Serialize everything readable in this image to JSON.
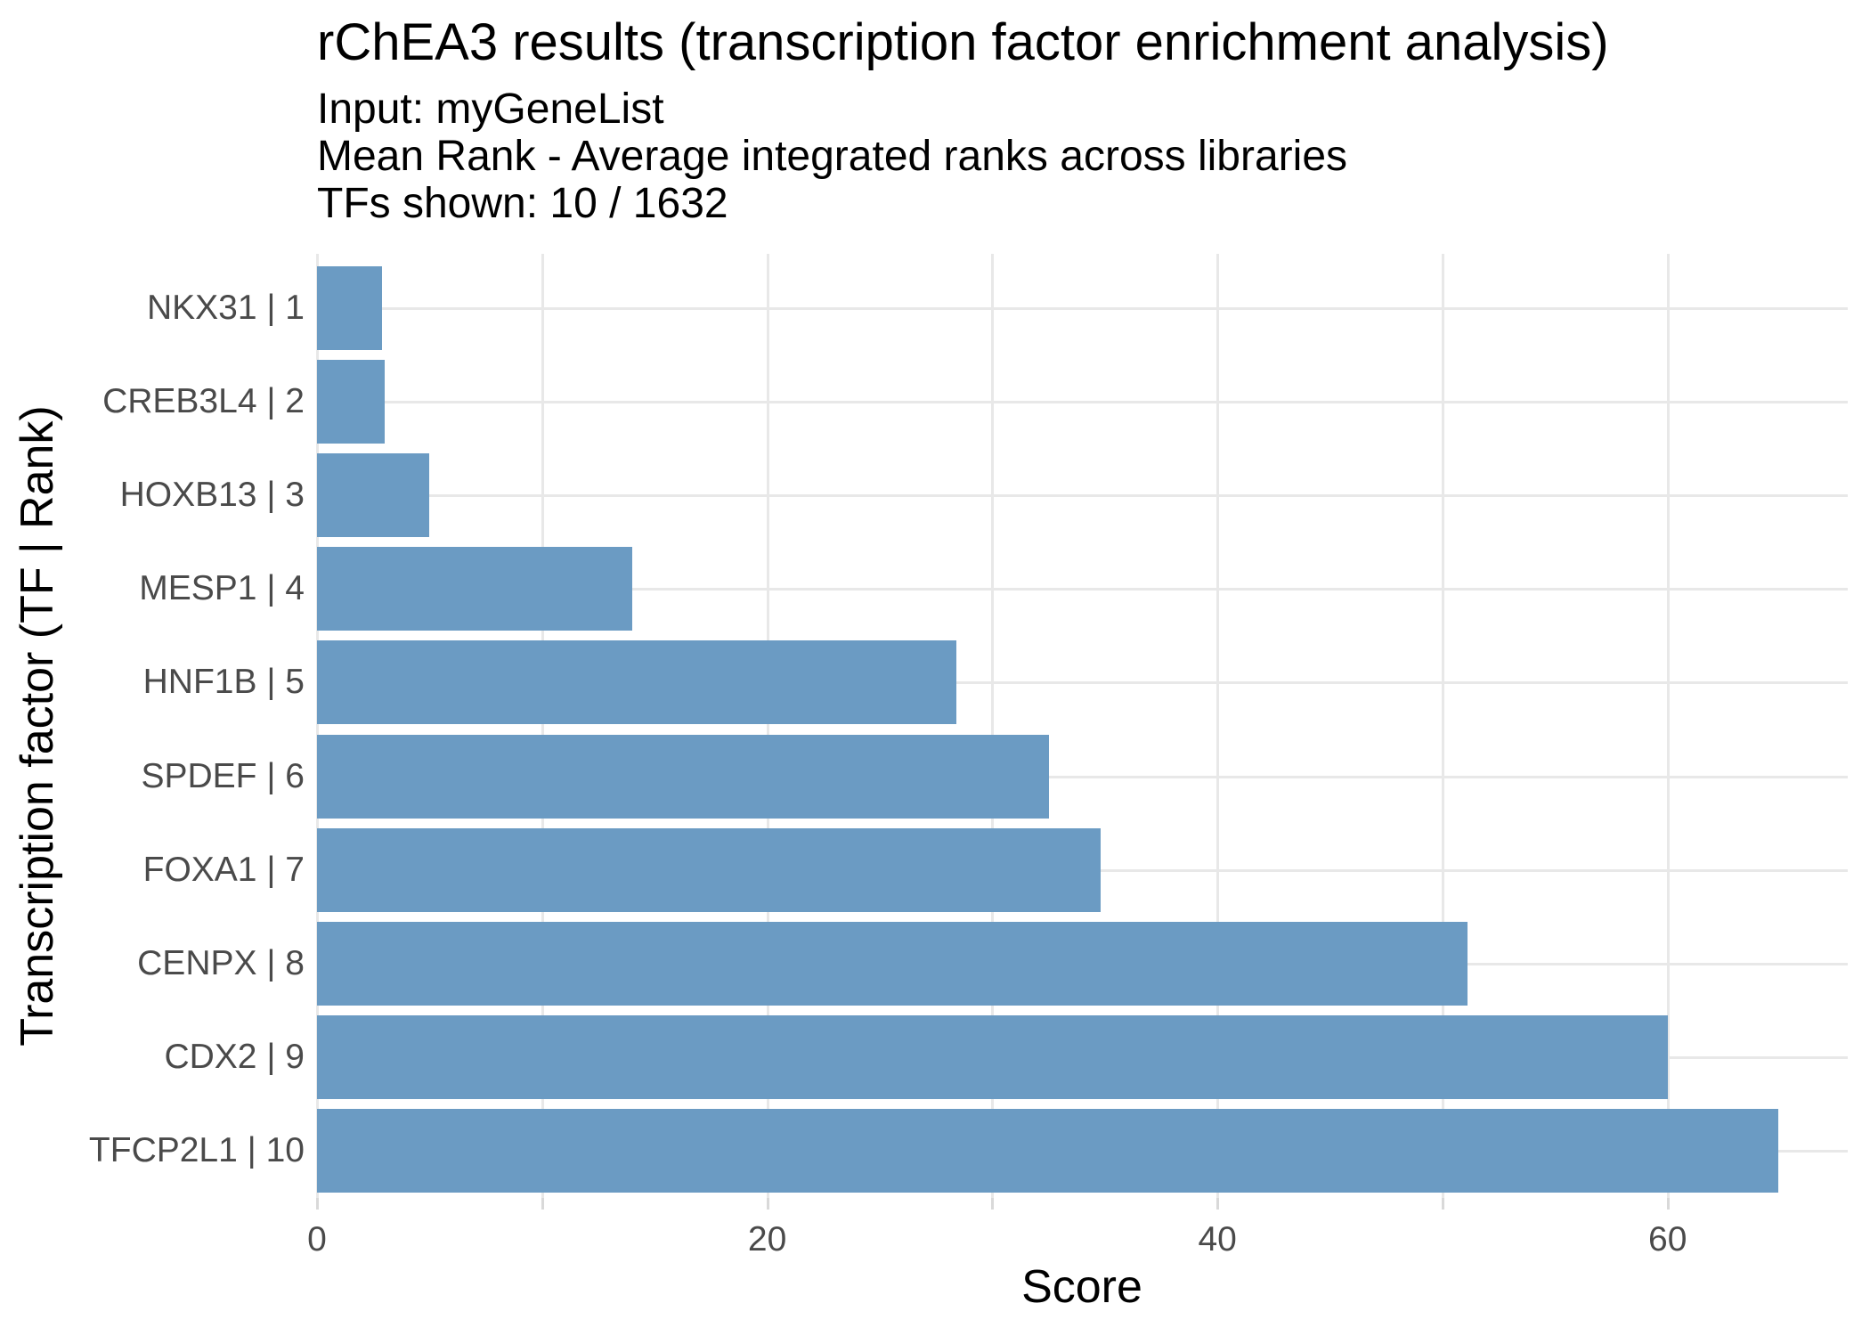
{
  "figure": {
    "title": "rChEA3 results (transcription factor enrichment analysis)",
    "subtitle": "Input: myGeneList\nMean Rank - Average integrated ranks across libraries\nTFs shown: 10 / 1632"
  },
  "chart_data": {
    "type": "bar",
    "orientation": "horizontal",
    "title": "rChEA3 results (transcription factor enrichment analysis)",
    "subtitle_lines": [
      "Input: myGeneList",
      "Mean Rank - Average integrated ranks across libraries",
      "TFs shown: 10 / 1632"
    ],
    "categories": [
      "NKX31 | 1",
      "CREB3L4 | 2",
      "HOXB13 | 3",
      "MESP1 | 4",
      "HNF1B | 5",
      "SPDEF | 6",
      "FOXA1 | 7",
      "CENPX | 8",
      "CDX2 | 9",
      "TFCP2L1 | 10"
    ],
    "values": [
      2.9,
      3.0,
      5.0,
      14.0,
      28.4,
      32.5,
      34.8,
      51.1,
      60.0,
      64.9
    ],
    "xlabel": "Score",
    "ylabel": "Transcription factor (TF | Rank)",
    "xlim": [
      0,
      68
    ],
    "x_tick_labels": [
      0,
      20,
      40,
      60
    ],
    "x_gridlines": [
      0,
      10,
      20,
      30,
      40,
      50,
      60
    ],
    "grid": true,
    "legend": false,
    "bar_width_fraction": 0.89,
    "colors": {
      "bar": "#6B9BC3",
      "grid": "#E8E8E8",
      "tick_mark": "#D9D9D9",
      "tick_label": "#4A4A4A",
      "text": "#000000",
      "background": "#FFFFFF"
    }
  }
}
